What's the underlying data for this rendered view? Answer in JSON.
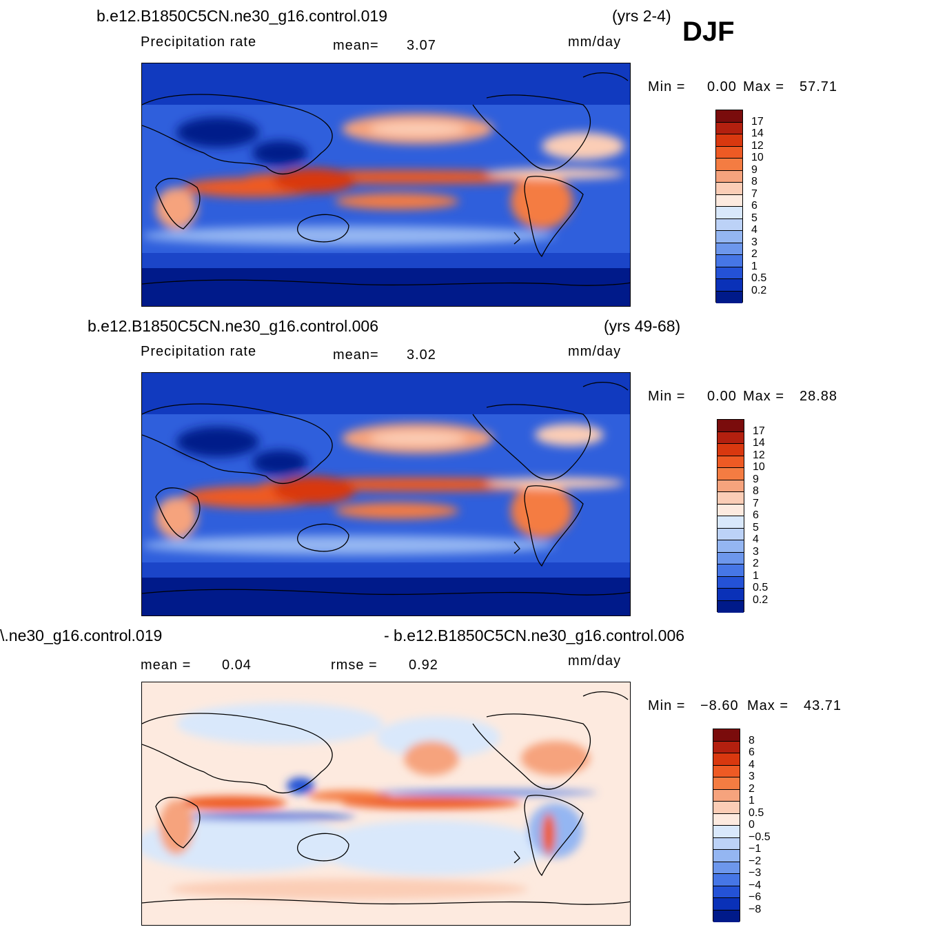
{
  "season": "DJF",
  "panels": [
    {
      "case_name": "b.e12.B1850C5CN.ne30_g16.control.019",
      "years": "(yrs 2-4)",
      "variable": "Precipitation  rate",
      "mean_label": "mean=",
      "mean_value": "3.07",
      "units": "mm/day",
      "min_label": "Min  =",
      "min_value": "0.00",
      "max_label": "Max  =",
      "max_value": "57.71",
      "colorbar": [
        "17",
        "14",
        "12",
        "10",
        "9",
        "8",
        "7",
        "6",
        "5",
        "4",
        "3",
        "2",
        "1",
        "0.5",
        "0.2"
      ]
    },
    {
      "case_name": "b.e12.B1850C5CN.ne30_g16.control.006",
      "years": "(yrs 49-68)",
      "variable": "Precipitation  rate",
      "mean_label": "mean=",
      "mean_value": "3.02",
      "units": "mm/day",
      "min_label": "Min  =",
      "min_value": "0.00",
      "max_label": "Max  =",
      "max_value": "28.88",
      "colorbar": [
        "17",
        "14",
        "12",
        "10",
        "9",
        "8",
        "7",
        "6",
        "5",
        "4",
        "3",
        "2",
        "1",
        "0.5",
        "0.2"
      ]
    },
    {
      "case_name": "\\.ne30_g16.control.019",
      "case_name_right": "- b.e12.B1850C5CN.ne30_g16.control.006",
      "mean_label": "mean  =",
      "mean_value": "0.04",
      "rmse_label": "rmse  =",
      "rmse_value": "0.92",
      "units": "mm/day",
      "min_label": "Min  =",
      "min_value": "−8.60",
      "max_label": "Max  =",
      "max_value": "43.71",
      "colorbar": [
        "8",
        "6",
        "4",
        "3",
        "2",
        "1",
        "0.5",
        "0",
        "−0.5",
        "−1",
        "−2",
        "−3",
        "−4",
        "−6",
        "−8"
      ]
    }
  ],
  "colors": {
    "precip_scale": [
      "#7a0c0c",
      "#b3200f",
      "#d9380f",
      "#ee5a24",
      "#f47c42",
      "#f6a37d",
      "#fbcdb6",
      "#fdeadf",
      "#d9e8fb",
      "#bcd2f7",
      "#94b6f2",
      "#6d97ec",
      "#4676e6",
      "#2452d6",
      "#0a31b8",
      "#001a8a"
    ],
    "diff_scale": [
      "#7a0c0c",
      "#b3200f",
      "#d9380f",
      "#ee5a24",
      "#f47c42",
      "#f6a37d",
      "#fbcdb6",
      "#fdeadf",
      "#d9e8fb",
      "#bcd2f7",
      "#94b6f2",
      "#6d97ec",
      "#4676e6",
      "#2452d6",
      "#0a31b8",
      "#001a8a"
    ]
  }
}
